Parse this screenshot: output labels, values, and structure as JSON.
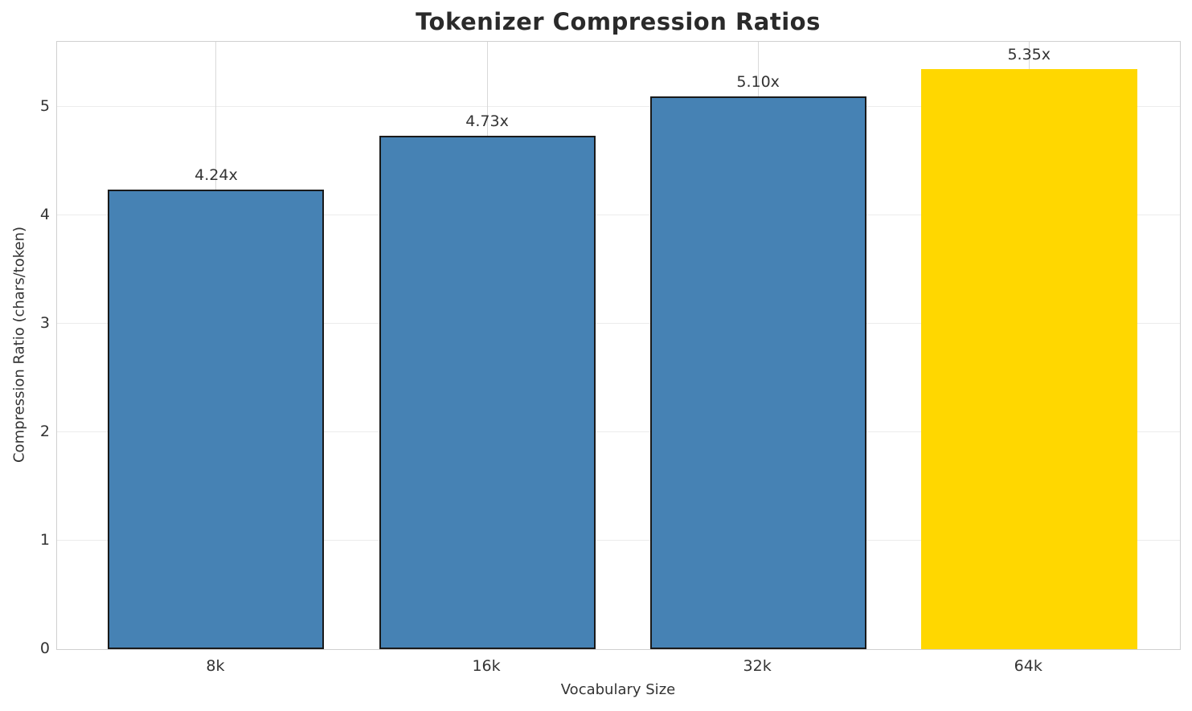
{
  "chart_data": {
    "type": "bar",
    "title": "Tokenizer Compression Ratios",
    "xlabel": "Vocabulary Size",
    "ylabel": "Compression Ratio (chars/token)",
    "categories": [
      "8k",
      "16k",
      "32k",
      "64k"
    ],
    "values": [
      4.24,
      4.73,
      5.1,
      5.35
    ],
    "bar_labels": [
      "4.24x",
      "4.73x",
      "5.10x",
      "5.35x"
    ],
    "yticks": [
      0,
      1,
      2,
      3,
      4,
      5
    ],
    "ylim": [
      0,
      5.6
    ],
    "grid": true,
    "legend": false,
    "bar_colors": [
      "#4682B4",
      "#4682B4",
      "#4682B4",
      "#FFD700"
    ],
    "bar_edge_colors": [
      "#1a1a1a",
      "#1a1a1a",
      "#1a1a1a",
      "none"
    ],
    "highlight_index": 3,
    "colors": {
      "default_bar": "#4682B4",
      "highlight_bar": "#FFD700",
      "bar_edge": "#1a1a1a",
      "grid_horizontal": "#ececec",
      "grid_vertical": "#d9d9d9",
      "spine": "#d0d0d0",
      "text": "#333333",
      "title_text": "#2a2a2a"
    }
  }
}
